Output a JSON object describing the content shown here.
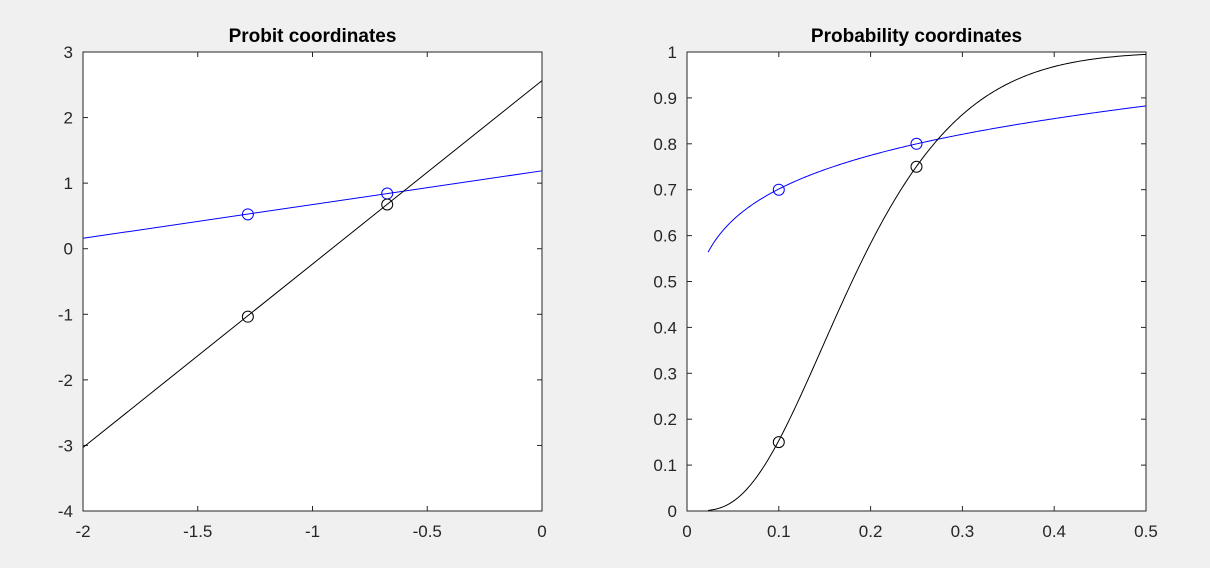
{
  "chart_data": [
    {
      "type": "line",
      "title": "Probit coordinates",
      "xlabel": "",
      "ylabel": "",
      "xlim": [
        -2,
        0
      ],
      "ylim": [
        -4,
        3
      ],
      "xticks": [
        -2,
        -1.5,
        -1,
        -0.5,
        0
      ],
      "xtick_labels": [
        "-2",
        "-1.5",
        "-1",
        "-0.5",
        "0"
      ],
      "yticks": [
        -4,
        -3,
        -2,
        -1,
        0,
        1,
        2,
        3
      ],
      "ytick_labels": [
        "-4",
        "-3",
        "-2",
        "-1",
        "0",
        "1",
        "2",
        "3"
      ],
      "grid": false,
      "series": [
        {
          "color": "#0000ff",
          "line": {
            "x": [
              -2,
              0
            ],
            "y": [
              0.159,
              1.188
            ]
          },
          "markers": {
            "x": [
              -1.2816,
              -0.6745
            ],
            "y": [
              0.5244,
              0.8416
            ]
          }
        },
        {
          "color": "#000000",
          "line": {
            "x": [
              -2,
              0
            ],
            "y": [
              -3.032,
              2.564
            ]
          },
          "markers": {
            "x": [
              -1.2816,
              -0.6745
            ],
            "y": [
              -1.0364,
              0.6745
            ]
          }
        }
      ]
    },
    {
      "type": "line",
      "title": "Probability coordinates",
      "xlabel": "",
      "ylabel": "",
      "xlim": [
        0,
        0.5
      ],
      "ylim": [
        0,
        1
      ],
      "xticks": [
        0,
        0.1,
        0.2,
        0.3,
        0.4,
        0.5
      ],
      "xtick_labels": [
        "0",
        "0.1",
        "0.2",
        "0.3",
        "0.4",
        "0.5"
      ],
      "yticks": [
        0,
        0.1,
        0.2,
        0.3,
        0.4,
        0.5,
        0.6,
        0.7,
        0.8,
        0.9,
        1
      ],
      "ytick_labels": [
        "0",
        "0.1",
        "0.2",
        "0.3",
        "0.4",
        "0.5",
        "0.6",
        "0.7",
        "0.8",
        "0.9",
        "1"
      ],
      "grid": false,
      "series": [
        {
          "color": "#0000ff",
          "curve_start_x": 0.023,
          "markers": {
            "x": [
              0.1,
              0.25
            ],
            "y": [
              0.7,
              0.8
            ]
          }
        },
        {
          "color": "#000000",
          "curve_start_x": 0.023,
          "markers": {
            "x": [
              0.1,
              0.25
            ],
            "y": [
              0.15,
              0.75
            ]
          }
        }
      ]
    }
  ]
}
